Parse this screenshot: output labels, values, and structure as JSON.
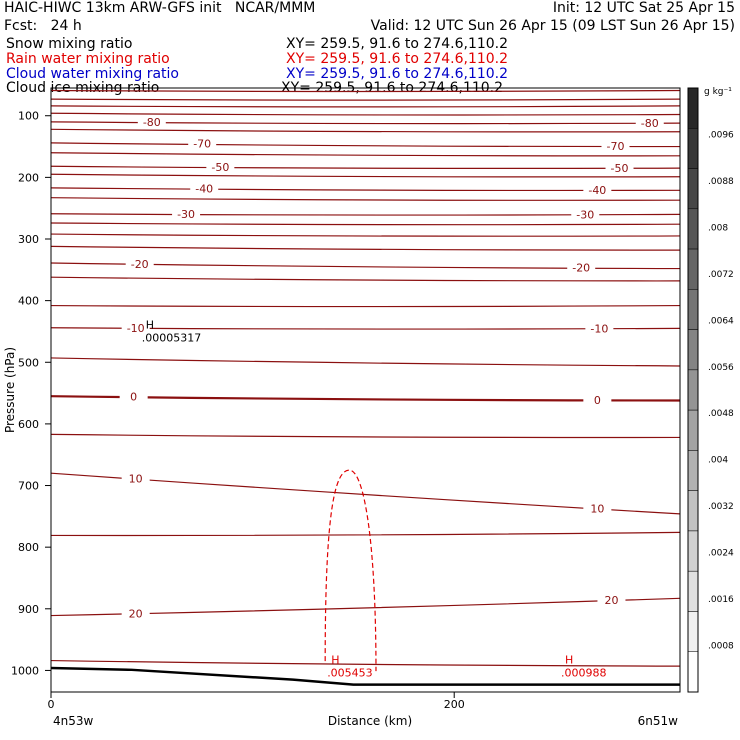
{
  "header": {
    "title": "HAIC-HIWC 13km ARW-GFS init   NCAR/MMM",
    "init": "Init: 12 UTC Sat 25 Apr 15",
    "fcst": "Fcst:   24 h",
    "valid": "Valid: 12 UTC Sun 26 Apr 15 (09 LST Sun 26 Apr 15)"
  },
  "fields": [
    {
      "name": "Snow mixing ratio",
      "xy": "XY= 259.5, 91.6 to 274.6,110.2",
      "color": "#000000"
    },
    {
      "name": "Rain water mixing ratio",
      "xy": "XY= 259.5, 91.6 to 274.6,110.2",
      "color": "#e00000"
    },
    {
      "name": "Cloud water mixing ratio",
      "xy": "XY= 259.5, 91.6 to 274.6,110.2",
      "color": "#0000c8"
    },
    {
      "name": "Cloud ice mixing ratio",
      "xy": "XY= 259.5, 91.6 to 274.6,110.2",
      "color": "#000000"
    }
  ],
  "colorbar": {
    "unit": "g kg⁻¹",
    "labels": [
      ".0096",
      ".0088",
      ".008",
      ".0072",
      ".0064",
      ".0056",
      ".0048",
      ".004",
      ".0032",
      ".0024",
      ".0016",
      ".0008"
    ]
  },
  "chart_data": {
    "type": "line",
    "xlabel": "Distance (km)",
    "ylabel": "Pressure (hPa)",
    "xlim": [
      0,
      312
    ],
    "ylim": [
      1035,
      55
    ],
    "x_ticks": [
      0,
      200
    ],
    "y_ticks": [
      100,
      200,
      300,
      400,
      500,
      600,
      700,
      800,
      900,
      1000
    ],
    "x_left_label": "4n53w",
    "x_right_label": "6n51w",
    "isotherms": [
      {
        "label": "-80",
        "ends": [
          110,
          112
        ],
        "labels": [
          {
            "x": 50,
            "t": "-80"
          },
          {
            "x": 297,
            "t": "-80"
          }
        ]
      },
      {
        "label": "-70",
        "ends": [
          144,
          150
        ],
        "labels": [
          {
            "x": 75,
            "t": "-70"
          },
          {
            "x": 280,
            "t": "-70"
          }
        ]
      },
      {
        "label": "-50",
        "ends": [
          182,
          185
        ],
        "labels": [
          {
            "x": 84,
            "t": "-50"
          },
          {
            "x": 282,
            "t": "-50"
          }
        ]
      },
      {
        "label": "-40",
        "ends": [
          217,
          221
        ],
        "labels": [
          {
            "x": 76,
            "t": "-40"
          },
          {
            "x": 271,
            "t": "-40"
          }
        ]
      },
      {
        "label": "-30",
        "ends": [
          259,
          260
        ],
        "labels": [
          {
            "x": 67,
            "t": "-30"
          },
          {
            "x": 265,
            "t": "-30"
          }
        ]
      },
      {
        "label": "-20",
        "ends": [
          339,
          348
        ],
        "labels": [
          {
            "x": 44,
            "t": "-20"
          },
          {
            "x": 263,
            "t": "-20"
          }
        ]
      },
      {
        "label": "-10",
        "ends": [
          444,
          445
        ],
        "labels": [
          {
            "x": 42,
            "t": "-10"
          },
          {
            "x": 272,
            "t": "-10"
          }
        ]
      },
      {
        "label": "0",
        "ends": [
          555,
          562
        ],
        "labels": [
          {
            "x": 41,
            "t": "0"
          },
          {
            "x": 271,
            "t": "0"
          }
        ]
      },
      {
        "label": "10",
        "ends": [
          680,
          746
        ],
        "labels": [
          {
            "x": 42,
            "t": "10"
          },
          {
            "x": 271,
            "t": "10"
          }
        ]
      },
      {
        "label": "20",
        "ends": [
          911,
          883
        ],
        "labels": [
          {
            "x": 42,
            "t": "20"
          },
          {
            "x": 278,
            "t": "20"
          }
        ]
      }
    ],
    "extra_contours_ends": [
      [
        59,
        59
      ],
      [
        73,
        73
      ],
      [
        84,
        84
      ],
      [
        96,
        98
      ],
      [
        122,
        126
      ],
      [
        160,
        165
      ],
      [
        195,
        199
      ],
      [
        233,
        237
      ],
      [
        274,
        276
      ],
      [
        292,
        295
      ],
      [
        312,
        318
      ],
      [
        362,
        368
      ],
      [
        408,
        408
      ],
      [
        493,
        506
      ],
      [
        617,
        622
      ],
      [
        781,
        776
      ],
      [
        984,
        993
      ]
    ],
    "ground_ends": [
      996,
      1023
    ],
    "markers": [
      {
        "letter": "H",
        "value": ".00005317",
        "x": 45,
        "p": 460,
        "color": "#000000"
      },
      {
        "letter": "H",
        "value": ".005453",
        "x": 137,
        "p": 1003,
        "color": "#e00000"
      },
      {
        "letter": "H",
        "value": ".000988",
        "x": 253,
        "p": 1003,
        "color": "#e00000"
      }
    ],
    "rain_contour": {
      "top_x": 148,
      "top_p": 675,
      "base_p": 985,
      "half_width_km": 12
    }
  }
}
